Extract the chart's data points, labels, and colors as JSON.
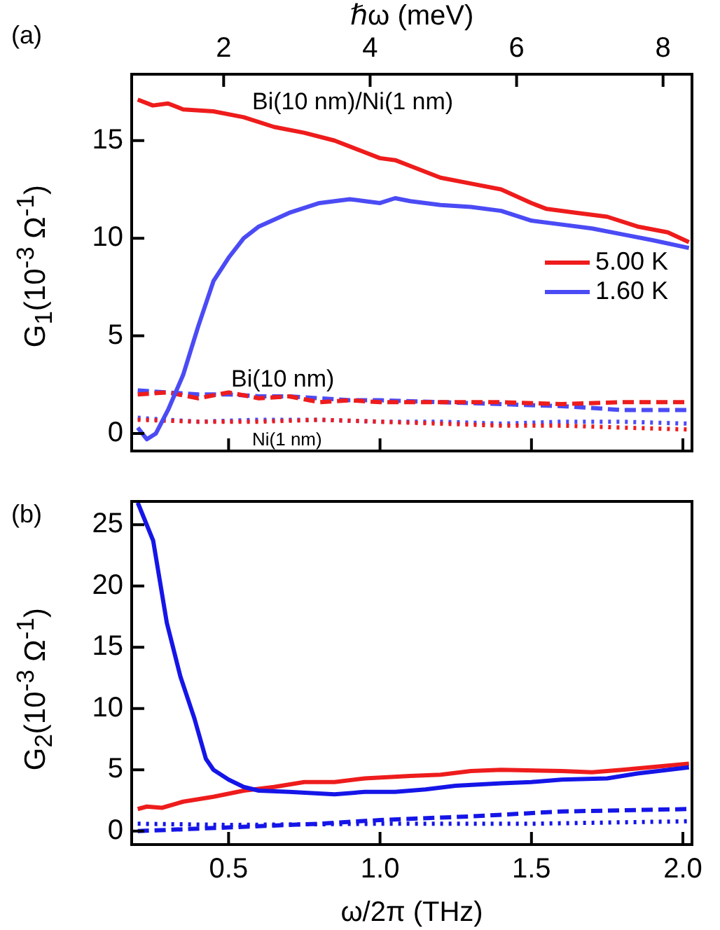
{
  "chart_data": [
    {
      "type": "line",
      "x2label": "ℏω (meV)",
      "ylabel": "G$_{1}$(10$^{-3}$ Ω$^{-1}$)",
      "xlim": [
        0.18,
        2.03
      ],
      "ylim": [
        -0.9,
        18.4
      ],
      "x2lim": [
        0.744,
        8.395
      ],
      "xticks": [
        {
          "value": 0.5,
          "label": null
        },
        {
          "value": 1,
          "label": null
        },
        {
          "value": 1.5,
          "label": null
        },
        {
          "value": 2,
          "label": null
        }
      ],
      "yticks": [
        0,
        5,
        10,
        15
      ],
      "x2ticks": [
        2,
        4,
        6,
        8
      ],
      "tick_labels": "y",
      "legend": "right",
      "marker": "none",
      "grid": false,
      "series": [
        {
          "name": "5.00 K",
          "color": "#ee1c1c",
          "line_style": "solid",
          "x": [
            0.2,
            0.25,
            0.3,
            0.35,
            0.45,
            0.55,
            0.65,
            0.75,
            0.85,
            0.95,
            1.0,
            1.05,
            1.1,
            1.2,
            1.3,
            1.4,
            1.5,
            1.55,
            1.65,
            1.75,
            1.85,
            1.95,
            2.02
          ],
          "values": [
            17.1,
            16.8,
            16.9,
            16.6,
            16.5,
            16.2,
            15.7,
            15.4,
            15.0,
            14.4,
            14.1,
            14.0,
            13.7,
            13.1,
            12.8,
            12.5,
            11.8,
            11.5,
            11.3,
            11.1,
            10.6,
            10.3,
            9.8
          ]
        },
        {
          "name": "1.60 K",
          "color": "#4b4bf5",
          "line_style": "solid",
          "x": [
            0.2,
            0.23,
            0.26,
            0.3,
            0.35,
            0.4,
            0.45,
            0.5,
            0.55,
            0.6,
            0.7,
            0.8,
            0.9,
            0.95,
            1.0,
            1.05,
            1.1,
            1.2,
            1.3,
            1.4,
            1.5,
            1.6,
            1.7,
            1.8,
            1.9,
            2.02
          ],
          "values": [
            0.3,
            -0.3,
            0,
            1.2,
            3.0,
            5.5,
            7.8,
            9.0,
            10.0,
            10.6,
            11.3,
            11.8,
            12.0,
            11.9,
            11.8,
            12.05,
            11.9,
            11.7,
            11.6,
            11.4,
            10.9,
            10.7,
            10.5,
            10.2,
            9.9,
            9.5
          ]
        },
        {
          "color": "#ee1c1c",
          "line_style": "dashed",
          "x": [
            0.2,
            0.3,
            0.4,
            0.5,
            0.6,
            0.7,
            0.8,
            0.9,
            1.0,
            1.2,
            1.4,
            1.6,
            1.8,
            2.02
          ],
          "values": [
            2.0,
            2.1,
            1.8,
            2.1,
            1.8,
            1.9,
            1.6,
            1.7,
            1.6,
            1.6,
            1.6,
            1.5,
            1.6,
            1.6
          ]
        },
        {
          "color": "#4b4bf5",
          "line_style": "dashed",
          "x": [
            0.2,
            0.3,
            0.4,
            0.5,
            0.6,
            0.7,
            0.8,
            0.9,
            1.0,
            1.2,
            1.4,
            1.6,
            1.8,
            2.02
          ],
          "values": [
            2.2,
            2.1,
            2.0,
            2.0,
            1.9,
            1.9,
            1.8,
            1.7,
            1.7,
            1.6,
            1.5,
            1.4,
            1.2,
            1.2
          ]
        },
        {
          "color": "#ee1c1c",
          "line_style": "dotted",
          "x": [
            0.2,
            0.4,
            0.6,
            0.8,
            1.0,
            1.2,
            1.4,
            1.6,
            1.8,
            2.02
          ],
          "values": [
            0.7,
            0.6,
            0.6,
            0.7,
            0.6,
            0.5,
            0.4,
            0.4,
            0.3,
            0.2
          ]
        },
        {
          "color": "#4b4bf5",
          "line_style": "dotted",
          "x": [
            0.2,
            0.4,
            0.6,
            0.8,
            1.0,
            1.2,
            1.4,
            1.6,
            1.8,
            2.02
          ],
          "values": [
            0.8,
            0.6,
            0.7,
            0.7,
            0.6,
            0.6,
            0.5,
            0.6,
            0.6,
            0.5
          ]
        }
      ],
      "annotations": [
        "(a)",
        "Bi(10 nm)/Ni(1 nm)",
        "Bi(10 nm)",
        "Ni(1 nm)"
      ]
    },
    {
      "type": "line",
      "xlabel": "ω/2π (THz)",
      "ylabel": "G$_{2}$(10$^{-3}$ Ω$^{-1}$)",
      "xlim": [
        0.18,
        2.03
      ],
      "ylim": [
        -1.1,
        26.9
      ],
      "xticks": [
        {
          "value": 0.5,
          "label": "0.5"
        },
        {
          "value": 1,
          "label": "1.0"
        },
        {
          "value": 1.5,
          "label": "1.5"
        },
        {
          "value": 2,
          "label": "2.0"
        }
      ],
      "yticks": [
        0,
        5,
        10,
        15,
        20,
        25
      ],
      "marker": "none",
      "grid": false,
      "series": [
        {
          "color": "#1515e8",
          "line_style": "solid",
          "x": [
            0.2,
            0.251,
            0.296,
            0.341,
            0.387,
            0.425,
            0.45,
            0.5,
            0.55,
            0.6,
            0.7,
            0.85,
            0.95,
            1.05,
            1.15,
            1.25,
            1.4,
            1.5,
            1.6,
            1.75,
            1.85,
            2.02
          ],
          "values": [
            26.8,
            23.7,
            17.0,
            12.6,
            9.2,
            5.9,
            5.0,
            4.2,
            3.6,
            3.3,
            3.2,
            3.0,
            3.2,
            3.2,
            3.4,
            3.7,
            3.9,
            4.0,
            4.2,
            4.3,
            4.7,
            5.2
          ]
        },
        {
          "color": "#ee1c1c",
          "line_style": "solid",
          "x": [
            0.2,
            0.23,
            0.28,
            0.35,
            0.45,
            0.55,
            0.65,
            0.75,
            0.85,
            0.95,
            1.1,
            1.2,
            1.3,
            1.4,
            1.6,
            1.7,
            1.8,
            2.02
          ],
          "values": [
            1.8,
            2.0,
            1.9,
            2.4,
            2.8,
            3.3,
            3.6,
            4.0,
            4.0,
            4.3,
            4.5,
            4.6,
            4.9,
            5.0,
            4.9,
            4.8,
            5.0,
            5.5
          ]
        },
        {
          "color": "#1515e8",
          "line_style": "dashed",
          "x": [
            0.2,
            0.5,
            0.8,
            1.0,
            1.3,
            1.6,
            2.02
          ],
          "values": [
            0.0,
            0.3,
            0.6,
            0.9,
            1.2,
            1.6,
            1.8
          ]
        },
        {
          "color": "#1515e8",
          "line_style": "dotted",
          "x": [
            0.2,
            0.5,
            1.0,
            1.5,
            2.02
          ],
          "values": [
            0.6,
            0.5,
            0.6,
            0.6,
            0.8
          ]
        }
      ],
      "annotations": [
        "(b)"
      ]
    }
  ]
}
